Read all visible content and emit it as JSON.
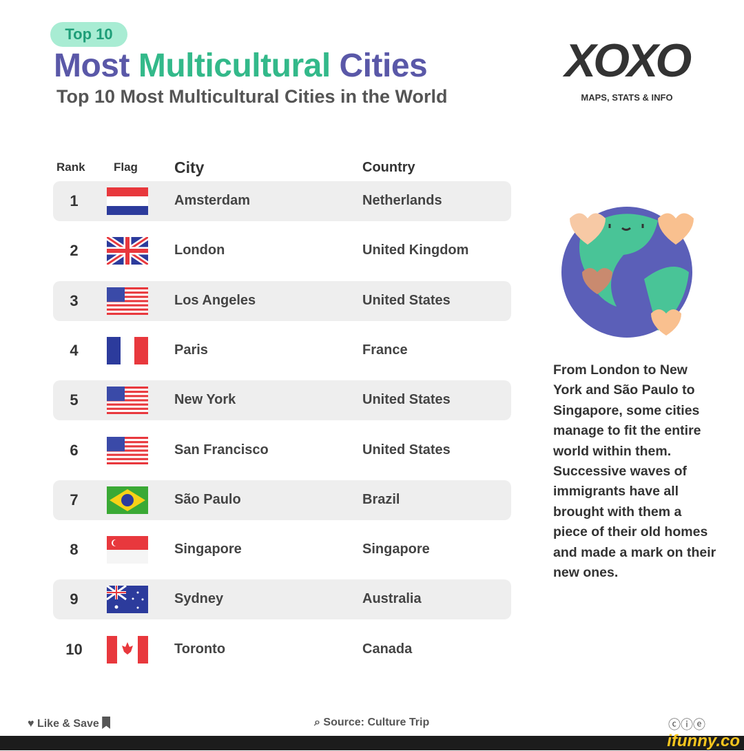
{
  "header": {
    "badge": "Top 10",
    "title_part1": "Most",
    "title_part2": "Multicultural",
    "title_part3": "Cities",
    "subtitle": "Top 10 Most Multicultural Cities in the World"
  },
  "logo": {
    "mark": "XOXO",
    "tagline": "MAPS, STATS & INFO"
  },
  "table": {
    "columns": [
      "Rank",
      "Flag",
      "City",
      "Country"
    ],
    "rows": [
      {
        "rank": "1",
        "city": "Amsterdam",
        "country": "Netherlands",
        "flag": "netherlands"
      },
      {
        "rank": "2",
        "city": "London",
        "country": "United Kingdom",
        "flag": "uk"
      },
      {
        "rank": "3",
        "city": "Los Angeles",
        "country": "United States",
        "flag": "usa"
      },
      {
        "rank": "4",
        "city": "Paris",
        "country": "France",
        "flag": "france"
      },
      {
        "rank": "5",
        "city": "New York",
        "country": "United States",
        "flag": "usa"
      },
      {
        "rank": "6",
        "city": "San Francisco",
        "country": "United States",
        "flag": "usa"
      },
      {
        "rank": "7",
        "city": "São Paulo",
        "country": "Brazil",
        "flag": "brazil"
      },
      {
        "rank": "8",
        "city": "Singapore",
        "country": "Singapore",
        "flag": "singapore"
      },
      {
        "rank": "9",
        "city": "Sydney",
        "country": "Australia",
        "flag": "australia"
      },
      {
        "rank": "10",
        "city": "Toronto",
        "country": "Canada",
        "flag": "canada"
      }
    ]
  },
  "description": "From London to New York and São Paulo to Singapore, some cities manage to fit the entire world within them. Successive waves of immigrants have all brought with them a piece of their old homes and made a mark on their new ones.",
  "footer": {
    "like_save": "Like & Save",
    "source": "Source: Culture Trip",
    "license_icons": "cc-by-nc-icon"
  },
  "watermark": "ifunny.co",
  "colors": {
    "purple": "#5a58a8",
    "green": "#33b98a",
    "badge_bg": "#a8ecd3",
    "row_shade": "#eeeeee"
  }
}
